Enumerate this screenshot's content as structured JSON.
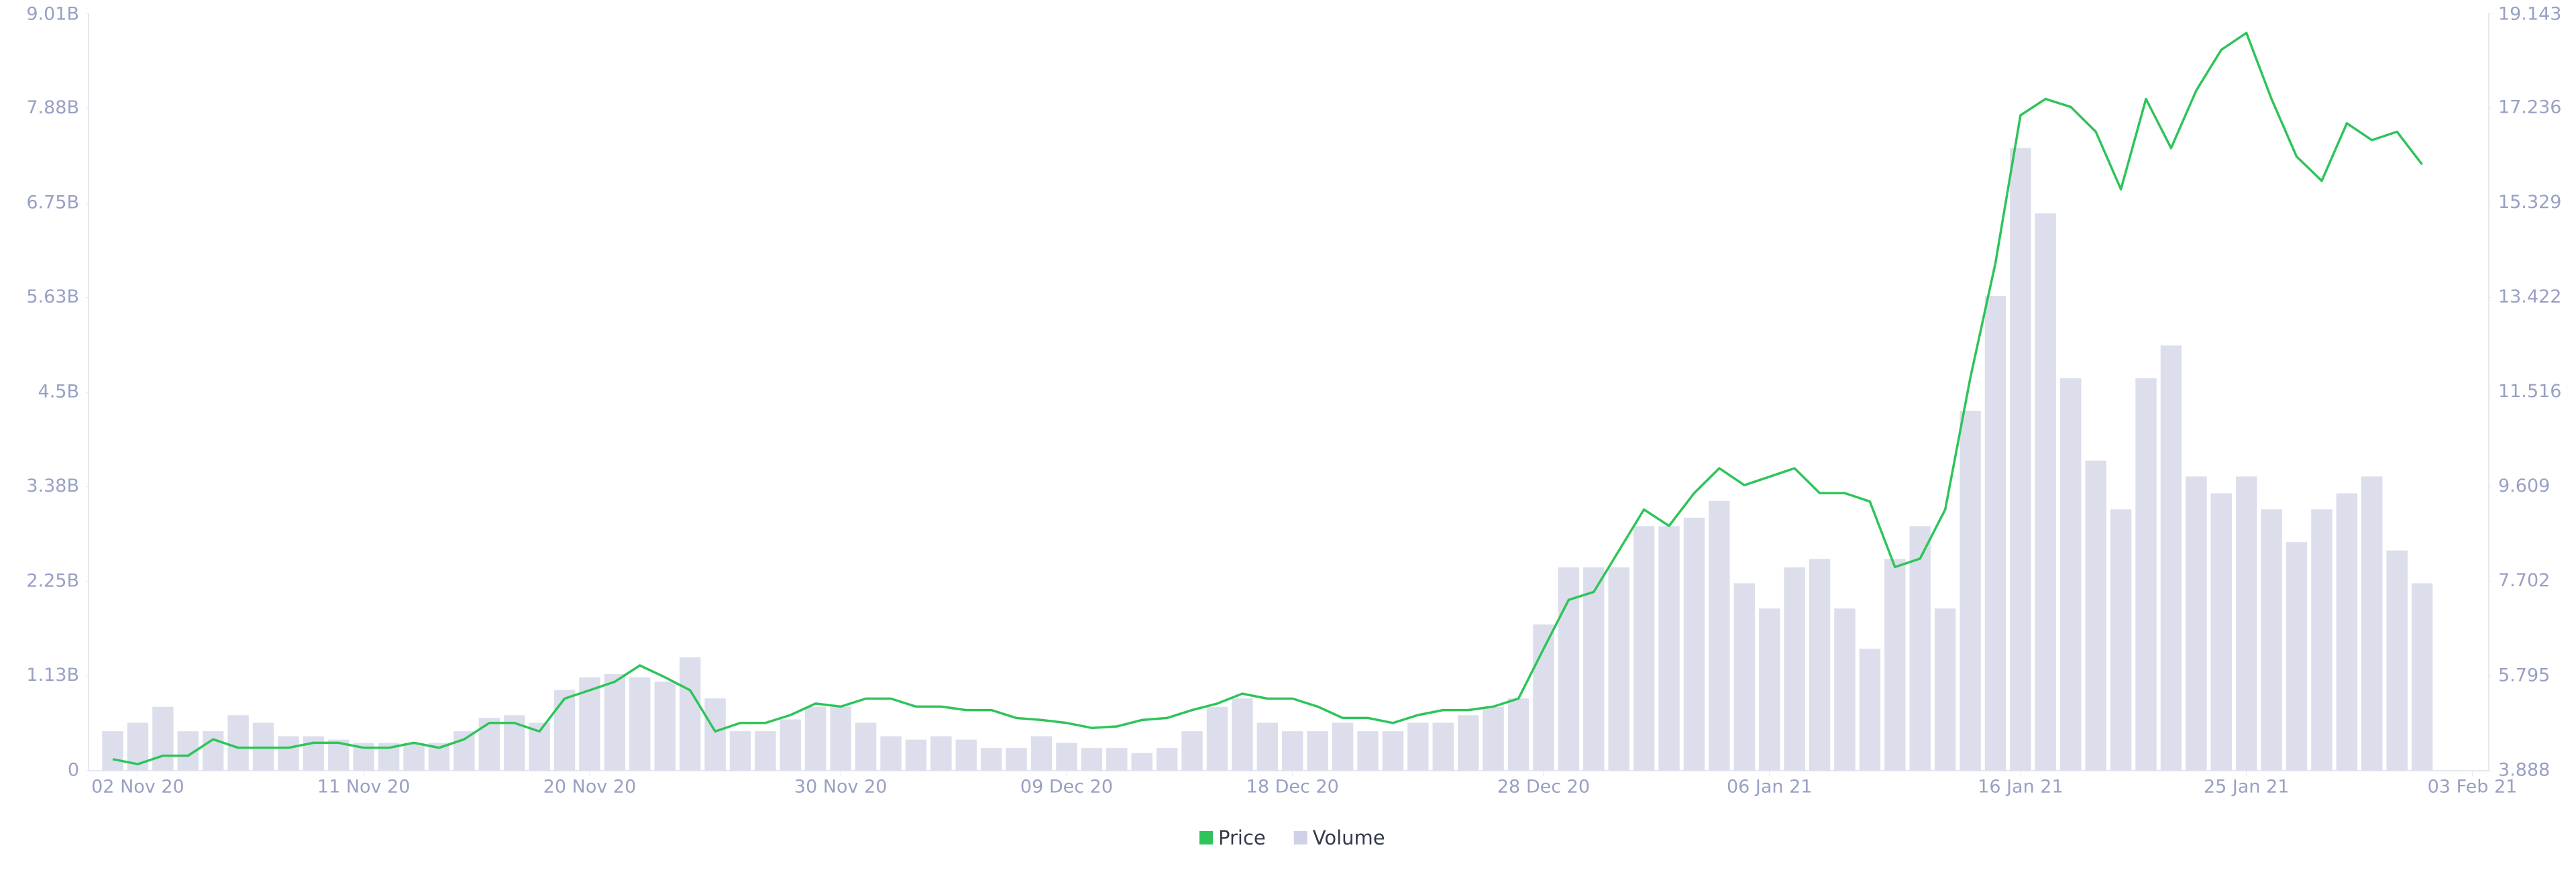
{
  "chart_data": {
    "type": "bar-line",
    "categories": [
      null,
      "02 Nov 20",
      null,
      null,
      null,
      null,
      null,
      null,
      null,
      null,
      "11 Nov 20",
      null,
      null,
      null,
      null,
      null,
      null,
      null,
      null,
      "20 Nov 20",
      null,
      null,
      null,
      null,
      null,
      null,
      null,
      null,
      null,
      "30 Nov 20",
      null,
      null,
      null,
      null,
      null,
      null,
      null,
      null,
      "09 Dec 20",
      null,
      null,
      null,
      null,
      null,
      null,
      null,
      null,
      "18 Dec 20",
      null,
      null,
      null,
      null,
      null,
      null,
      null,
      null,
      null,
      "28 Dec 20",
      null,
      null,
      null,
      null,
      null,
      null,
      null,
      null,
      "06 Jan 21",
      null,
      null,
      null,
      null,
      null,
      null,
      null,
      null,
      null,
      "16 Jan 21",
      null,
      null,
      null,
      null,
      null,
      null,
      null,
      null,
      "25 Jan 21",
      null,
      null,
      null,
      null,
      null,
      null,
      null,
      null,
      "03 Feb 21"
    ],
    "series": [
      {
        "name": "Price",
        "type": "line",
        "axis": "y2",
        "color": "#2ec45a",
        "values": [
          4.12,
          4.02,
          4.19,
          4.19,
          4.52,
          4.35,
          4.35,
          4.35,
          4.45,
          4.45,
          4.35,
          4.35,
          4.45,
          4.35,
          4.52,
          4.85,
          4.85,
          4.68,
          5.34,
          5.51,
          5.68,
          6.01,
          5.77,
          5.51,
          4.68,
          4.85,
          4.85,
          5.01,
          5.24,
          5.18,
          5.34,
          5.34,
          5.18,
          5.18,
          5.11,
          5.11,
          4.95,
          4.91,
          4.85,
          4.75,
          4.78,
          4.91,
          4.95,
          5.11,
          5.24,
          5.44,
          5.34,
          5.34,
          5.18,
          4.95,
          4.95,
          4.85,
          5.01,
          5.11,
          5.11,
          5.18,
          5.34,
          6.34,
          7.33,
          7.49,
          8.32,
          9.15,
          8.82,
          9.48,
          9.98,
          9.64,
          9.81,
          9.98,
          9.48,
          9.48,
          9.31,
          7.99,
          8.16,
          9.15,
          11.8,
          14.11,
          17.09,
          17.42,
          17.26,
          16.76,
          15.6,
          17.42,
          16.43,
          17.59,
          18.41,
          18.75,
          17.42,
          16.26,
          15.77,
          16.93,
          16.59,
          16.76,
          16.1,
          null,
          null
        ]
      },
      {
        "name": "Volume",
        "type": "bar",
        "axis": "y",
        "color": "#dcdeec",
        "values": [
          470000000,
          570000000,
          760000000,
          470000000,
          470000000,
          660000000,
          570000000,
          410000000,
          410000000,
          370000000,
          330000000,
          330000000,
          330000000,
          330000000,
          470000000,
          630000000,
          660000000,
          570000000,
          960000000,
          1110000000,
          1150000000,
          1110000000,
          1060000000,
          1350000000,
          860000000,
          470000000,
          470000000,
          610000000,
          760000000,
          760000000,
          570000000,
          410000000,
          370000000,
          410000000,
          370000000,
          270000000,
          270000000,
          410000000,
          330000000,
          270000000,
          270000000,
          210000000,
          270000000,
          470000000,
          760000000,
          860000000,
          570000000,
          470000000,
          470000000,
          570000000,
          470000000,
          470000000,
          570000000,
          570000000,
          660000000,
          760000000,
          860000000,
          1740000000,
          2420000000,
          2420000000,
          2420000000,
          2910000000,
          2910000000,
          3010000000,
          3210000000,
          2230000000,
          1930000000,
          2420000000,
          2520000000,
          1930000000,
          1450000000,
          2520000000,
          2910000000,
          1930000000,
          4280000000,
          5650000000,
          7410000000,
          6630000000,
          4670000000,
          3690000000,
          3110000000,
          4670000000,
          5060000000,
          3500000000,
          3300000000,
          3500000000,
          3110000000,
          2720000000,
          3110000000,
          3300000000,
          3500000000,
          2620000000,
          2230000000,
          null,
          null
        ]
      }
    ],
    "ylim": [
      0,
      9010000000
    ],
    "yticks": [
      0,
      {
        "value": 1130000000,
        "label": "1.13B"
      },
      {
        "value": 2250000000,
        "label": "2.25B"
      },
      {
        "value": 3380000000,
        "label": "3.38B"
      },
      {
        "value": 4500000000,
        "label": "4.5B"
      },
      {
        "value": 5630000000,
        "label": "5.63B"
      },
      {
        "value": 6750000000,
        "label": "6.75B"
      },
      {
        "value": 7880000000,
        "label": "7.88B"
      },
      {
        "value": 9010000000,
        "label": "9.01B"
      }
    ],
    "y2lim": [
      3.888,
      19.143
    ],
    "y2ticks": [
      3.888,
      5.795,
      7.702,
      9.609,
      11.516,
      13.422,
      15.329,
      17.236,
      19.143
    ],
    "legend": "bottom"
  }
}
